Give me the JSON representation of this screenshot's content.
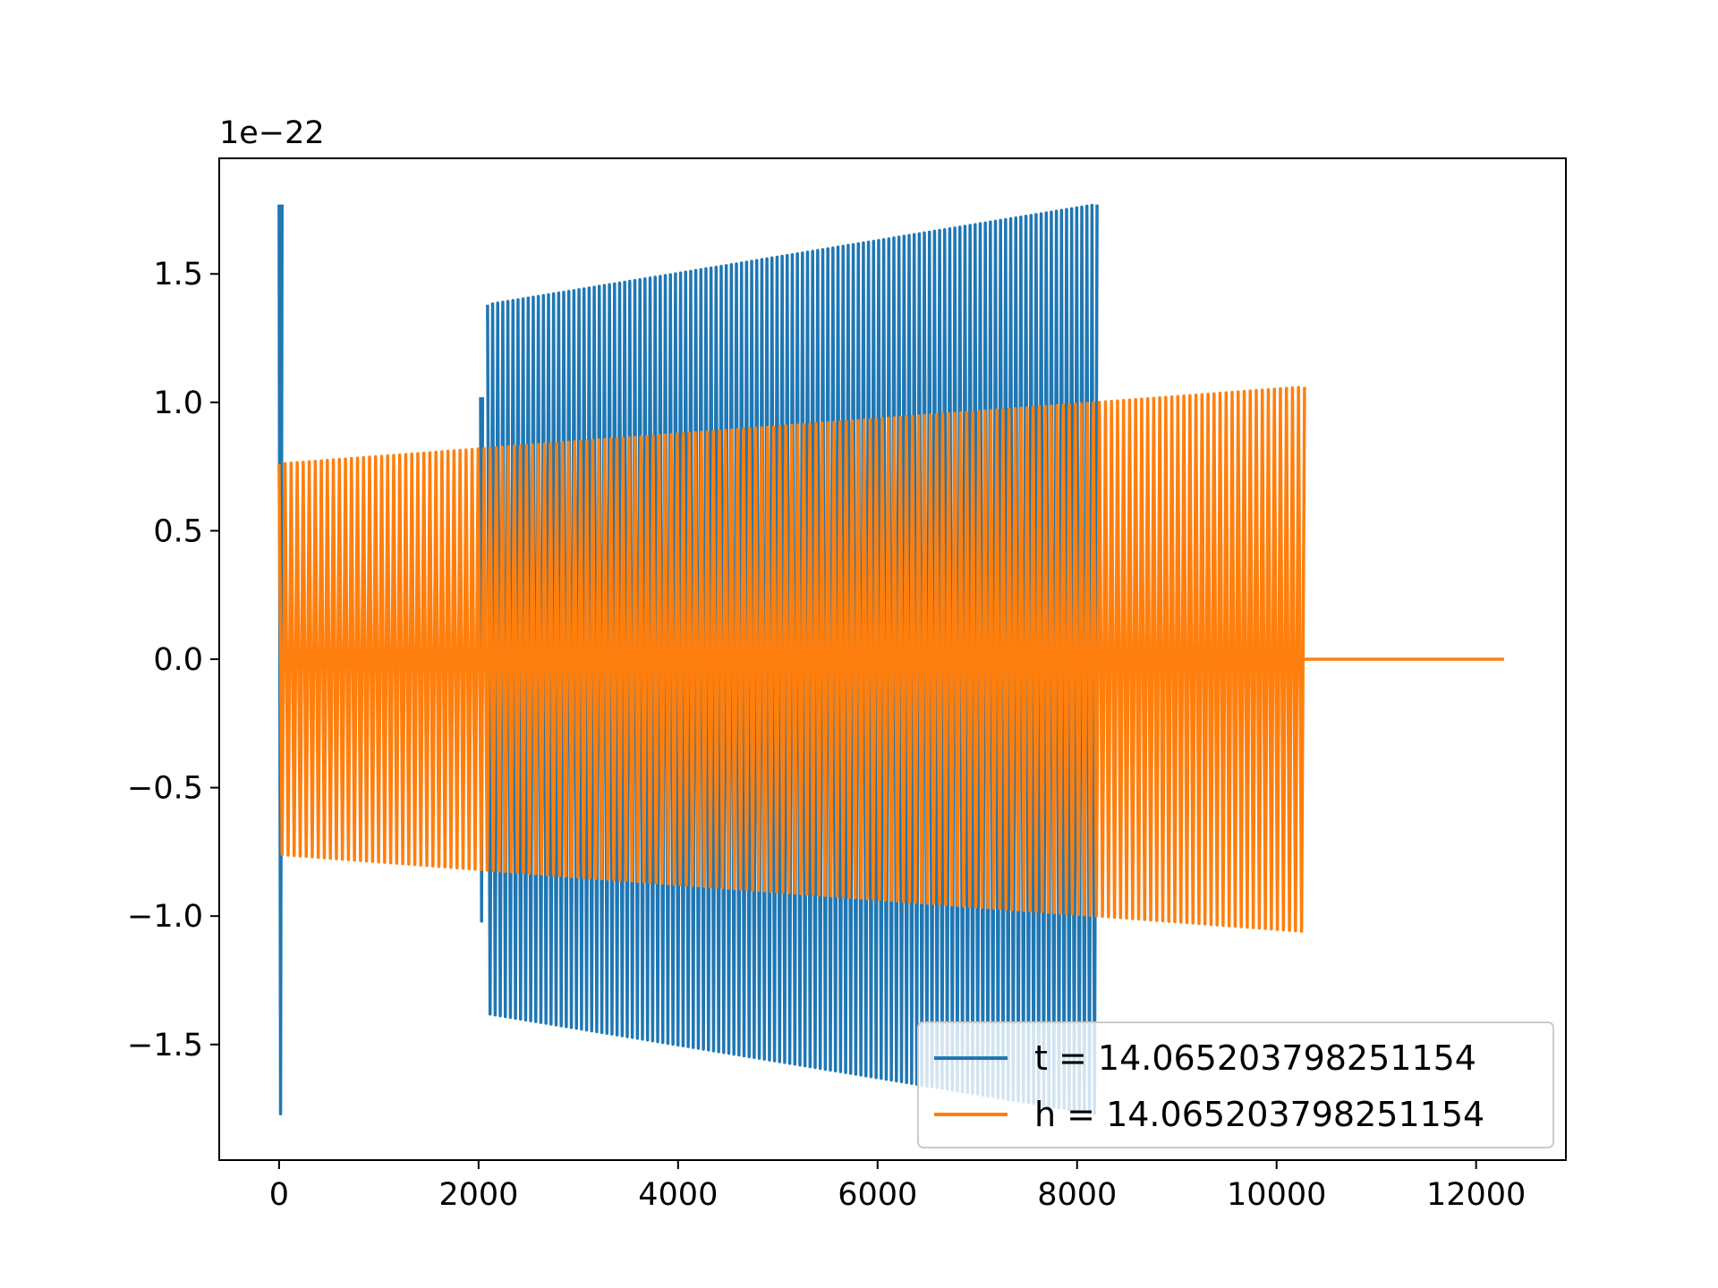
{
  "chart_data": {
    "type": "line",
    "title": "",
    "xlabel": "",
    "ylabel": "",
    "y_offset_label": "1e−22",
    "xlim": [
      -600,
      12900
    ],
    "ylim": [
      -1.95,
      1.95
    ],
    "x_ticks": [
      0,
      2000,
      4000,
      6000,
      8000,
      10000,
      12000
    ],
    "x_tick_labels": [
      "0",
      "2000",
      "4000",
      "6000",
      "8000",
      "10000",
      "12000"
    ],
    "y_ticks": [
      -1.5,
      -1.0,
      -0.5,
      0.0,
      0.5,
      1.0,
      1.5
    ],
    "y_tick_labels": [
      "−1.5",
      "−1.0",
      "−0.5",
      "0.0",
      "0.5",
      "1.0",
      "1.5"
    ],
    "grid": false,
    "legend_position": "lower-right",
    "series": [
      {
        "name": "t = 14.065203798251154",
        "color": "#1f77b4",
        "pattern": "oscillation",
        "segments": [
          {
            "x_start": 0,
            "x_end": 30,
            "amp_start": 1.77,
            "amp_end": 1.77,
            "cycles": 1
          },
          {
            "x_start": 2020,
            "x_end": 2040,
            "amp_start": 1.02,
            "amp_end": 1.02,
            "cycles": 1
          },
          {
            "x_start": 2090,
            "x_end": 8200,
            "amp_start": 1.38,
            "amp_end": 1.77,
            "cycles": 120
          }
        ]
      },
      {
        "name": "h = 14.065203798251154",
        "color": "#ff7f0e",
        "pattern": "oscillation",
        "segments": [
          {
            "x_start": 0,
            "x_end": 10280,
            "amp_start": 0.76,
            "amp_end": 1.06,
            "cycles": 170
          }
        ],
        "flat_tail": {
          "x_start": 10280,
          "x_end": 12280,
          "value": 0.0
        }
      }
    ]
  }
}
